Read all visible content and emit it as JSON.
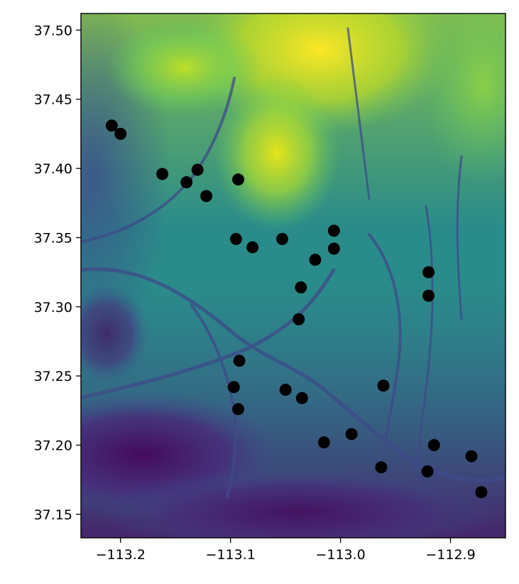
{
  "chart_data": {
    "type": "scatter",
    "title": "",
    "xlabel": "",
    "ylabel": "",
    "xlim": [
      -113.236,
      -112.85
    ],
    "ylim": [
      37.133,
      37.512
    ],
    "x_ticks": [
      -113.2,
      -113.1,
      -113.0,
      -112.9
    ],
    "x_tick_labels": [
      "−113.2",
      "−113.1",
      "−113.0",
      "−112.9"
    ],
    "y_ticks": [
      37.15,
      37.2,
      37.25,
      37.3,
      37.35,
      37.4,
      37.45,
      37.5
    ],
    "y_tick_labels": [
      "37.15",
      "37.20",
      "37.25",
      "37.30",
      "37.35",
      "37.40",
      "37.45",
      "37.50"
    ],
    "background": "elevation raster (viridis colormap)",
    "grid": false,
    "marker_color": "#000000",
    "colors": {
      "low": "#440154",
      "mid_low": "#3b528b",
      "mid": "#21918c",
      "mid_high": "#5ec962",
      "high": "#fde725"
    },
    "points": [
      {
        "x": -113.208,
        "y": 37.431
      },
      {
        "x": -113.2,
        "y": 37.425
      },
      {
        "x": -113.162,
        "y": 37.396
      },
      {
        "x": -113.13,
        "y": 37.399
      },
      {
        "x": -113.14,
        "y": 37.39
      },
      {
        "x": -113.122,
        "y": 37.38
      },
      {
        "x": -113.093,
        "y": 37.392
      },
      {
        "x": -113.095,
        "y": 37.349
      },
      {
        "x": -113.08,
        "y": 37.343
      },
      {
        "x": -113.053,
        "y": 37.349
      },
      {
        "x": -113.006,
        "y": 37.355
      },
      {
        "x": -113.006,
        "y": 37.342
      },
      {
        "x": -113.023,
        "y": 37.334
      },
      {
        "x": -113.036,
        "y": 37.314
      },
      {
        "x": -113.038,
        "y": 37.291
      },
      {
        "x": -112.92,
        "y": 37.325
      },
      {
        "x": -112.92,
        "y": 37.308
      },
      {
        "x": -113.092,
        "y": 37.261
      },
      {
        "x": -113.097,
        "y": 37.242
      },
      {
        "x": -113.093,
        "y": 37.226
      },
      {
        "x": -113.05,
        "y": 37.24
      },
      {
        "x": -113.035,
        "y": 37.234
      },
      {
        "x": -112.961,
        "y": 37.243
      },
      {
        "x": -113.015,
        "y": 37.202
      },
      {
        "x": -112.99,
        "y": 37.208
      },
      {
        "x": -112.963,
        "y": 37.184
      },
      {
        "x": -112.915,
        "y": 37.2
      },
      {
        "x": -112.921,
        "y": 37.181
      },
      {
        "x": -112.881,
        "y": 37.192
      },
      {
        "x": -112.872,
        "y": 37.166
      }
    ]
  }
}
